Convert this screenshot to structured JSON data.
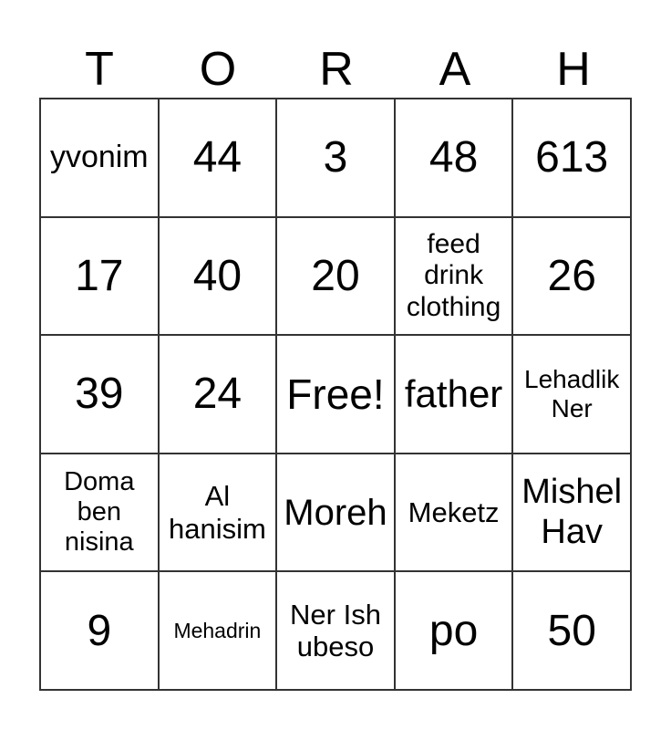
{
  "header": {
    "letters": [
      "T",
      "O",
      "R",
      "A",
      "H"
    ]
  },
  "cells": [
    "yvonim",
    "44",
    "3",
    "48",
    "613",
    "17",
    "40",
    "20",
    "feed\ndrink\nclothing",
    "26",
    "39",
    "24",
    "Free!",
    "father",
    "Lehadlik\nNer",
    "Doma\nben\nnisina",
    "Al\nhanisim",
    "Moreh",
    "Meketz",
    "Mishel\nHav",
    "9",
    "Mehadrin",
    "Ner Ish\nubeso",
    "po",
    "50"
  ]
}
